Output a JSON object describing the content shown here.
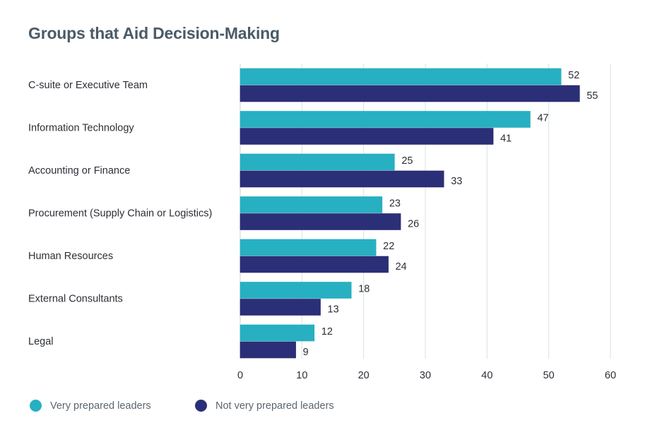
{
  "chart_data": {
    "type": "bar",
    "orientation": "horizontal",
    "title": "Groups that Aid Decision-Making",
    "xlabel": "",
    "ylabel": "",
    "categories": [
      "C-suite or Executive Team",
      "Information Technology",
      "Accounting or Finance",
      "Procurement (Supply Chain or Logistics)",
      "Human Resources",
      "External Consultants",
      "Legal"
    ],
    "series": [
      {
        "name": "Very prepared leaders",
        "color": "#26b0c2",
        "values": [
          52,
          47,
          25,
          23,
          22,
          18,
          12
        ]
      },
      {
        "name": "Not very prepared leaders",
        "color": "#2b2f77",
        "values": [
          55,
          41,
          33,
          26,
          24,
          13,
          9
        ]
      }
    ],
    "xlim": [
      0,
      60
    ],
    "xticks": [
      "0",
      "10",
      "20",
      "30",
      "40",
      "50",
      "60"
    ],
    "grid": true,
    "legend_position": "bottom-left",
    "data_labels": true
  }
}
